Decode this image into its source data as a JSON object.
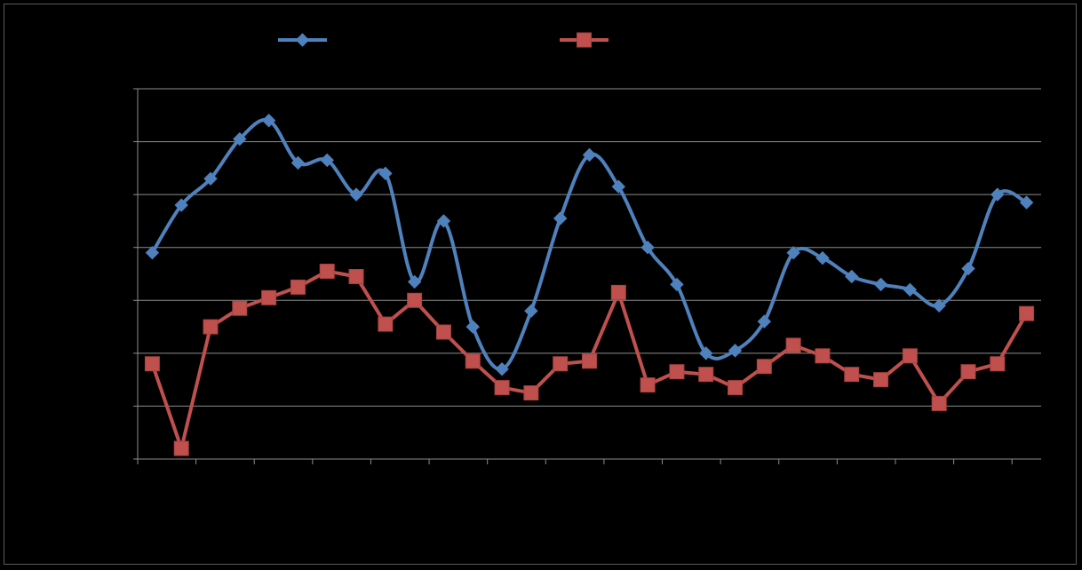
{
  "chart_data": {
    "type": "line",
    "title": "",
    "xlabel": "",
    "ylabel": "",
    "grid": true,
    "legend_position": "top",
    "x_count": 31,
    "ylim": [
      0,
      7
    ],
    "series": [
      {
        "color": "#4F81BD",
        "marker": "diamond",
        "smooth": true,
        "values": [
          3.9,
          4.8,
          5.3,
          6.05,
          6.4,
          5.6,
          5.65,
          5.0,
          5.4,
          3.35,
          4.5,
          2.5,
          1.7,
          2.8,
          4.55,
          5.75,
          5.15,
          4.0,
          3.3,
          2.0,
          2.05,
          2.6,
          3.9,
          3.8,
          3.45,
          3.3,
          3.2,
          2.9,
          3.6,
          5.0,
          4.85
        ]
      },
      {
        "color": "#C0504D",
        "marker": "square",
        "smooth": false,
        "values": [
          1.8,
          0.2,
          2.5,
          2.85,
          3.05,
          3.25,
          3.55,
          3.45,
          2.55,
          3.0,
          2.4,
          1.85,
          1.35,
          1.25,
          1.8,
          1.85,
          3.15,
          1.4,
          1.65,
          1.6,
          1.35,
          1.75,
          2.15,
          1.95,
          1.6,
          1.5,
          1.95,
          1.05,
          1.65,
          1.8,
          2.75
        ]
      }
    ]
  }
}
